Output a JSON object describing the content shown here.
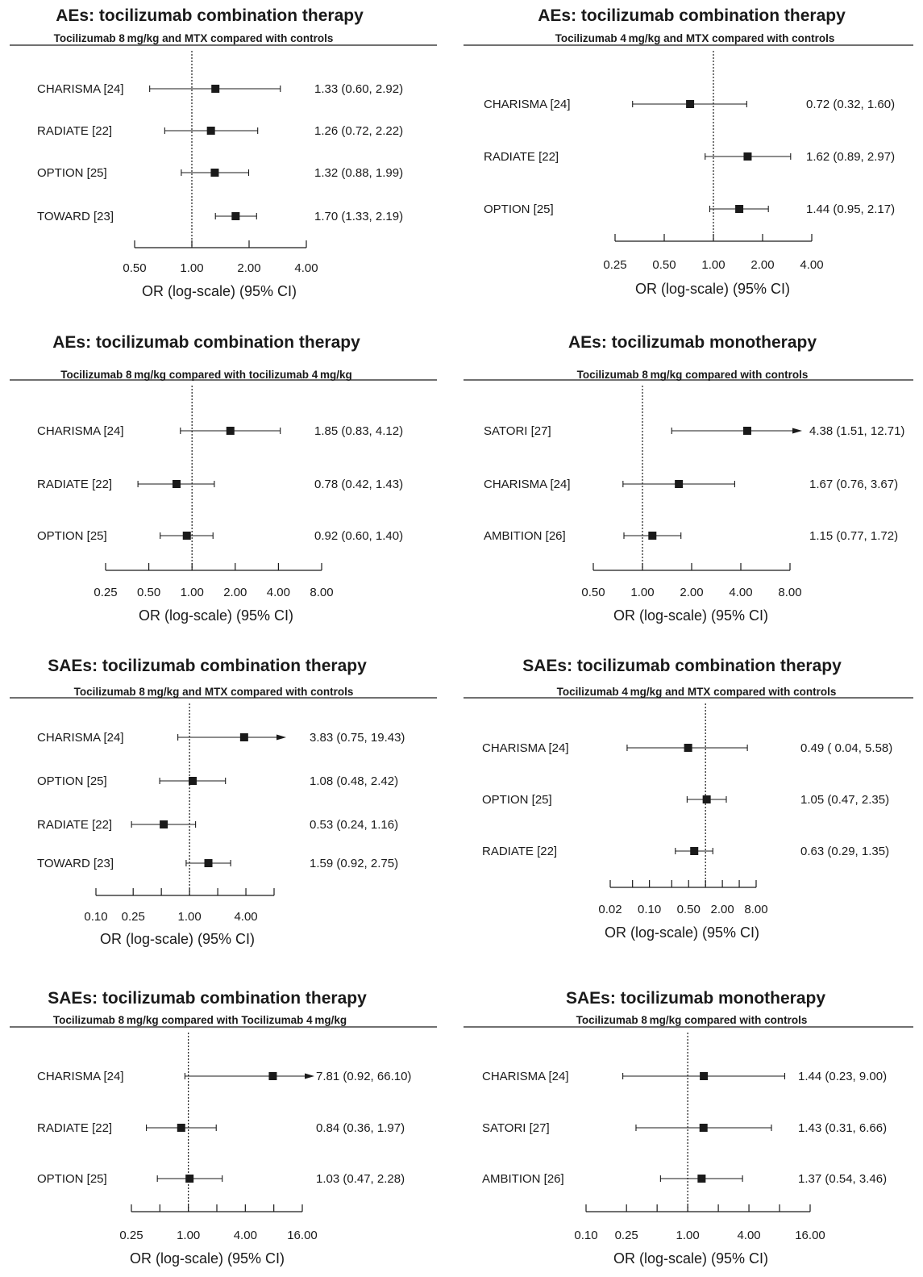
{
  "chart_data": [
    {
      "type": "forest",
      "title": "AEs: tocilizumab combination therapy",
      "subtitle": "Tocilizumab 8 mg/kg and MTX compared with controls",
      "xlabel": "OR (log-scale) (95% CI)",
      "scale": "log",
      "xlim": [
        0.5,
        4
      ],
      "reference_line": 1,
      "ticks": [
        {
          "v": 0.5,
          "l": "0.50"
        },
        {
          "v": 1,
          "l": "1.00"
        },
        {
          "v": 2,
          "l": "2.00"
        },
        {
          "v": 4,
          "l": "4.00"
        }
      ],
      "studies": [
        {
          "name": "CHARISMA  [24]",
          "or": 1.33,
          "lo": 0.6,
          "hi": 2.92,
          "label": "1.33 (0.60, 2.92)"
        },
        {
          "name": "RADIATE [22]",
          "or": 1.26,
          "lo": 0.72,
          "hi": 2.22,
          "label": "1.26 (0.72, 2.22)"
        },
        {
          "name": "OPTION [25]",
          "or": 1.32,
          "lo": 0.88,
          "hi": 1.99,
          "label": "1.32 (0.88, 1.99)"
        },
        {
          "name": "TOWARD [23]",
          "or": 1.7,
          "lo": 1.33,
          "hi": 2.19,
          "label": "1.70 (1.33, 2.19)"
        }
      ]
    },
    {
      "type": "forest",
      "title": "AEs: tocilizumab combination therapy",
      "subtitle": "Tocilizumab 4 mg/kg and MTX compared with controls",
      "xlabel": "OR (log-scale) (95% CI)",
      "scale": "log",
      "xlim": [
        0.25,
        4
      ],
      "reference_line": 1,
      "ticks": [
        {
          "v": 0.25,
          "l": "0.25"
        },
        {
          "v": 0.5,
          "l": "0.50"
        },
        {
          "v": 1,
          "l": "1.00"
        },
        {
          "v": 2,
          "l": "2.00"
        },
        {
          "v": 4,
          "l": "4.00"
        }
      ],
      "studies": [
        {
          "name": "CHARISMA [24]",
          "or": 0.72,
          "lo": 0.32,
          "hi": 1.6,
          "label": "0.72 (0.32, 1.60)"
        },
        {
          "name": "RADIATE [22]",
          "or": 1.62,
          "lo": 0.89,
          "hi": 2.97,
          "label": "1.62 (0.89,  2.97)"
        },
        {
          "name": "OPTION [25]",
          "or": 1.44,
          "lo": 0.95,
          "hi": 2.17,
          "label": "1.44 (0.95,  2.17)"
        }
      ]
    },
    {
      "type": "forest",
      "title": "AEs: tocilizumab combination therapy",
      "subtitle": "Tocilizumab 8 mg/kg compared with tocilizumab 4 mg/kg",
      "xlabel": "OR (log-scale) (95% CI)",
      "scale": "log",
      "xlim": [
        0.25,
        8
      ],
      "reference_line": 1,
      "ticks": [
        {
          "v": 0.25,
          "l": "0.25"
        },
        {
          "v": 0.5,
          "l": "0.50"
        },
        {
          "v": 1,
          "l": "1.00"
        },
        {
          "v": 2,
          "l": "2.00"
        },
        {
          "v": 4,
          "l": "4.00"
        },
        {
          "v": 8,
          "l": "8.00"
        }
      ],
      "studies": [
        {
          "name": "CHARISMA [24]",
          "or": 1.85,
          "lo": 0.83,
          "hi": 4.12,
          "label": "1.85 (0.83, 4.12)"
        },
        {
          "name": "RADIATE [22]",
          "or": 0.78,
          "lo": 0.42,
          "hi": 1.43,
          "label": "0.78 (0.42, 1.43)"
        },
        {
          "name": "OPTION [25]",
          "or": 0.92,
          "lo": 0.6,
          "hi": 1.4,
          "label": "0.92 (0.60, 1.40)"
        }
      ]
    },
    {
      "type": "forest",
      "title": "AEs: tocilizumab monotherapy",
      "subtitle": "Tocilizumab 8 mg/kg compared with controls",
      "xlabel": "OR (log-scale) (95% CI)",
      "scale": "log",
      "xlim": [
        0.5,
        8
      ],
      "reference_line": 1,
      "ticks": [
        {
          "v": 0.5,
          "l": "0.50"
        },
        {
          "v": 1,
          "l": "1.00"
        },
        {
          "v": 2,
          "l": "2.00"
        },
        {
          "v": 4,
          "l": "4.00"
        },
        {
          "v": 8,
          "l": "8.00"
        }
      ],
      "studies": [
        {
          "name": "SATORI [27]",
          "or": 4.38,
          "lo": 1.51,
          "hi": 12.71,
          "label": "4.38 (1.51, 12.71)",
          "arrow": true
        },
        {
          "name": "CHARISMA [24]",
          "or": 1.67,
          "lo": 0.76,
          "hi": 3.67,
          "label": "1.67 (0.76, 3.67)"
        },
        {
          "name": "AMBITION [26]",
          "or": 1.15,
          "lo": 0.77,
          "hi": 1.72,
          "label": "1.15 (0.77, 1.72)"
        }
      ]
    },
    {
      "type": "forest",
      "title": "SAEs: tocilizumab combination therapy",
      "subtitle": "Tocilizumab 8 mg/kg and MTX compared with controls",
      "xlabel": "OR (log-scale) (95% CI)",
      "scale": "log",
      "xlim": [
        0.1,
        8
      ],
      "reference_line": 1,
      "ticks": [
        {
          "v": 0.1,
          "l": "0.10"
        },
        {
          "v": 0.25,
          "l": "0.25"
        },
        {
          "v": 0.5,
          "l": ""
        },
        {
          "v": 1,
          "l": "1.00"
        },
        {
          "v": 2,
          "l": ""
        },
        {
          "v": 4,
          "l": "4.00"
        },
        {
          "v": 8,
          "l": ""
        }
      ],
      "studies": [
        {
          "name": "CHARISMA [24]",
          "or": 3.83,
          "lo": 0.75,
          "hi": 19.43,
          "label": "3.83 (0.75, 19.43)",
          "arrow": true
        },
        {
          "name": "OPTION [25]",
          "or": 1.08,
          "lo": 0.48,
          "hi": 2.42,
          "label": "1.08 (0.48, 2.42)"
        },
        {
          "name": "RADIATE [22]",
          "or": 0.53,
          "lo": 0.24,
          "hi": 1.16,
          "label": "0.53 (0.24, 1.16)"
        },
        {
          "name": "TOWARD [23]",
          "or": 1.59,
          "lo": 0.92,
          "hi": 2.75,
          "label": "1.59 (0.92, 2.75)"
        }
      ]
    },
    {
      "type": "forest",
      "title": "SAEs: tocilizumab combination therapy",
      "subtitle": "Tocilizumab 4 mg/kg and MTX compared with controls",
      "xlabel": "OR (log-scale) (95% CI)",
      "scale": "log",
      "xlim": [
        0.02,
        8
      ],
      "reference_line": 1,
      "ticks": [
        {
          "v": 0.02,
          "l": "0.02"
        },
        {
          "v": 0.05,
          "l": ""
        },
        {
          "v": 0.1,
          "l": "0.10"
        },
        {
          "v": 0.25,
          "l": ""
        },
        {
          "v": 0.5,
          "l": "0.50"
        },
        {
          "v": 1,
          "l": ""
        },
        {
          "v": 2,
          "l": "2.00"
        },
        {
          "v": 4,
          "l": ""
        },
        {
          "v": 8,
          "l": "8.00"
        }
      ],
      "studies": [
        {
          "name": "CHARISMA [24]",
          "or": 0.49,
          "lo": 0.04,
          "hi": 5.58,
          "label": "0.49 ( 0.04, 5.58)"
        },
        {
          "name": "OPTION [25]",
          "or": 1.05,
          "lo": 0.47,
          "hi": 2.35,
          "label": "1.05 (0.47, 2.35)"
        },
        {
          "name": "RADIATE [22]",
          "or": 0.63,
          "lo": 0.29,
          "hi": 1.35,
          "label": "0.63 (0.29, 1.35)"
        }
      ]
    },
    {
      "type": "forest",
      "title": "SAEs: tocilizumab combination therapy",
      "subtitle": "Tocilizumab 8 mg/kg compared with Tocilizumab 4 mg/kg",
      "xlabel": "OR (log-scale) (95% CI)",
      "scale": "log",
      "xlim": [
        0.25,
        16
      ],
      "reference_line": 1,
      "ticks": [
        {
          "v": 0.25,
          "l": "0.25"
        },
        {
          "v": 0.5,
          "l": ""
        },
        {
          "v": 1,
          "l": "1.00"
        },
        {
          "v": 2,
          "l": ""
        },
        {
          "v": 4,
          "l": "4.00"
        },
        {
          "v": 8,
          "l": ""
        },
        {
          "v": 16,
          "l": "16.00"
        }
      ],
      "studies": [
        {
          "name": "CHARISMA [24]",
          "or": 7.81,
          "lo": 0.92,
          "hi": 66.1,
          "label": "7.81 (0.92, 66.10)",
          "arrow": true
        },
        {
          "name": "RADIATE [22]",
          "or": 0.84,
          "lo": 0.36,
          "hi": 1.97,
          "label": "0.84 (0.36, 1.97)"
        },
        {
          "name": "OPTION [25]",
          "or": 1.03,
          "lo": 0.47,
          "hi": 2.28,
          "label": "1.03 (0.47, 2.28)"
        }
      ]
    },
    {
      "type": "forest",
      "title": "SAEs: tocilizumab monotherapy",
      "subtitle": "Tocilizumab 8 mg/kg compared with controls",
      "xlabel": "OR (log-scale) (95% CI)",
      "scale": "log",
      "xlim": [
        0.1,
        16
      ],
      "reference_line": 1,
      "ticks": [
        {
          "v": 0.1,
          "l": "0.10"
        },
        {
          "v": 0.25,
          "l": "0.25"
        },
        {
          "v": 0.5,
          "l": ""
        },
        {
          "v": 1,
          "l": "1.00"
        },
        {
          "v": 2,
          "l": ""
        },
        {
          "v": 4,
          "l": "4.00"
        },
        {
          "v": 8,
          "l": ""
        },
        {
          "v": 16,
          "l": "16.00"
        }
      ],
      "studies": [
        {
          "name": "CHARISMA [24]",
          "or": 1.44,
          "lo": 0.23,
          "hi": 9.0,
          "label": "1.44 (0.23, 9.00)"
        },
        {
          "name": "SATORI [27]",
          "or": 1.43,
          "lo": 0.31,
          "hi": 6.66,
          "label": "1.43 (0.31, 6.66)"
        },
        {
          "name": "AMBITION [26]",
          "or": 1.37,
          "lo": 0.54,
          "hi": 3.46,
          "label": "1.37 (0.54, 3.46)"
        }
      ]
    }
  ]
}
